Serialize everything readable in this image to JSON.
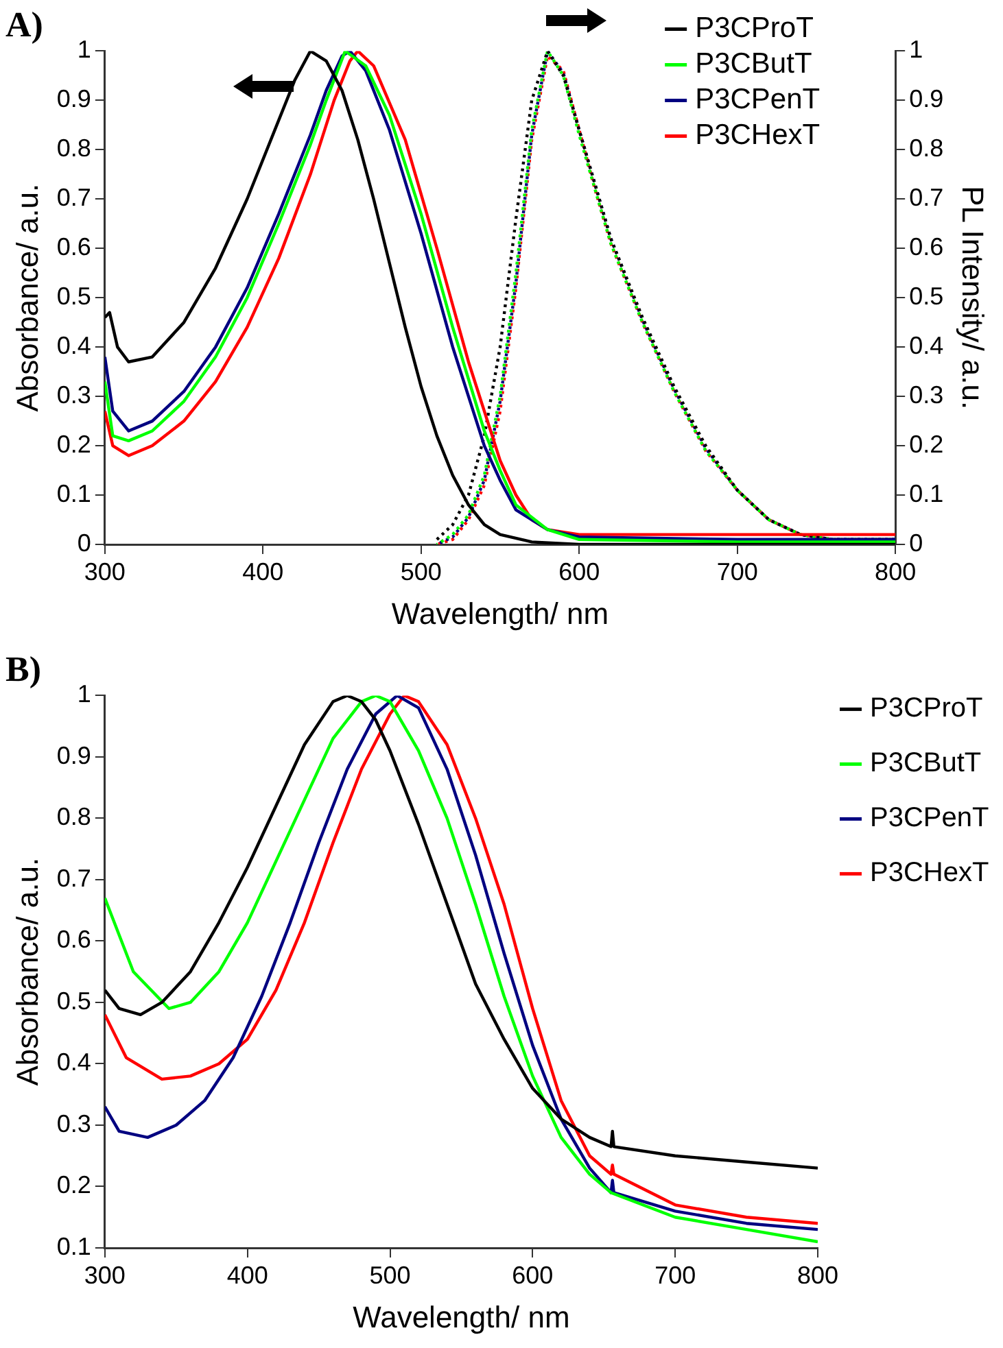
{
  "chart_data": [
    {
      "type": "line",
      "title": "A)",
      "xlabel": "Wavelength/ nm",
      "ylabel": "Absorbance/ a.u.",
      "y2label": "PL Intensity/ a.u.",
      "xlim": [
        300,
        800
      ],
      "xticks": [
        300,
        400,
        500,
        600,
        700,
        800
      ],
      "ylim": [
        0,
        1
      ],
      "yticks": [
        0,
        0.1,
        0.2,
        0.3,
        0.4,
        0.5,
        0.6,
        0.7,
        0.8,
        0.9,
        1
      ],
      "y2lim": [
        0,
        1
      ],
      "y2ticks": [
        0,
        0.1,
        0.2,
        0.3,
        0.4,
        0.5,
        0.6,
        0.7,
        0.8,
        0.9,
        1
      ],
      "grid": false,
      "legend": "top right",
      "marker": "none",
      "line_style": "solid",
      "series": [
        {
          "name": "P3CProT",
          "color": "#000000",
          "x": [
            300,
            303,
            308,
            315,
            330,
            350,
            370,
            390,
            410,
            420,
            430,
            440,
            450,
            460,
            470,
            480,
            490,
            500,
            510,
            520,
            530,
            540,
            550,
            570,
            600,
            700,
            800
          ],
          "values": [
            0.46,
            0.47,
            0.4,
            0.37,
            0.38,
            0.45,
            0.56,
            0.7,
            0.86,
            0.94,
            1,
            0.98,
            0.92,
            0.82,
            0.7,
            0.57,
            0.44,
            0.32,
            0.22,
            0.14,
            0.08,
            0.04,
            0.02,
            0.005,
            0,
            0,
            0
          ]
        },
        {
          "name": "P3CButT",
          "color": "#00ff00",
          "x": [
            300,
            305,
            315,
            330,
            350,
            370,
            390,
            410,
            430,
            440,
            452,
            465,
            480,
            500,
            520,
            540,
            550,
            560,
            580,
            600,
            700,
            800
          ],
          "values": [
            0.33,
            0.22,
            0.21,
            0.23,
            0.29,
            0.38,
            0.5,
            0.65,
            0.81,
            0.9,
            1,
            0.97,
            0.87,
            0.67,
            0.44,
            0.23,
            0.15,
            0.08,
            0.03,
            0.01,
            0.005,
            0.005
          ]
        },
        {
          "name": "P3CPenT",
          "color": "#000080",
          "x": [
            300,
            305,
            315,
            330,
            350,
            370,
            390,
            410,
            430,
            440,
            450,
            455,
            465,
            480,
            500,
            520,
            540,
            550,
            560,
            580,
            600,
            700,
            800
          ],
          "values": [
            0.38,
            0.27,
            0.23,
            0.25,
            0.31,
            0.4,
            0.52,
            0.67,
            0.83,
            0.92,
            0.99,
            1,
            0.96,
            0.84,
            0.63,
            0.4,
            0.2,
            0.13,
            0.07,
            0.03,
            0.015,
            0.01,
            0.01
          ]
        },
        {
          "name": "P3CHexT",
          "color": "#ff0000",
          "x": [
            300,
            305,
            315,
            330,
            350,
            370,
            390,
            410,
            430,
            445,
            455,
            460,
            470,
            490,
            510,
            530,
            550,
            560,
            570,
            580,
            600,
            700,
            800
          ],
          "values": [
            0.27,
            0.2,
            0.18,
            0.2,
            0.25,
            0.33,
            0.44,
            0.58,
            0.75,
            0.9,
            0.98,
            1,
            0.97,
            0.82,
            0.6,
            0.37,
            0.17,
            0.1,
            0.05,
            0.03,
            0.02,
            0.02,
            0.02
          ]
        },
        {
          "axis": "y2",
          "line_style": "dotted",
          "color": "#000000",
          "x": [
            510,
            520,
            530,
            540,
            550,
            560,
            570,
            580,
            590,
            600,
            610,
            620,
            640,
            660,
            680,
            700,
            720,
            740,
            760,
            780,
            800
          ],
          "values": [
            0.01,
            0.04,
            0.1,
            0.22,
            0.4,
            0.66,
            0.9,
            1,
            0.95,
            0.84,
            0.73,
            0.62,
            0.46,
            0.32,
            0.2,
            0.11,
            0.05,
            0.02,
            0.01,
            0.01,
            0.01
          ]
        },
        {
          "axis": "y2",
          "line_style": "dotted",
          "color": "#00ff00",
          "x": [
            510,
            520,
            530,
            540,
            550,
            560,
            570,
            580,
            590,
            600,
            610,
            620,
            640,
            660,
            680,
            700,
            720,
            740,
            760,
            780,
            800
          ],
          "values": [
            0,
            0.02,
            0.06,
            0.14,
            0.3,
            0.55,
            0.84,
            1,
            0.95,
            0.83,
            0.72,
            0.61,
            0.45,
            0.31,
            0.19,
            0.11,
            0.05,
            0.02,
            0.01,
            0.01,
            0.01
          ]
        },
        {
          "axis": "y2",
          "line_style": "dotted",
          "color": "#000080",
          "x": [
            510,
            520,
            530,
            540,
            550,
            560,
            570,
            580,
            590,
            600,
            610,
            620,
            640,
            660,
            680,
            700,
            720,
            740,
            760,
            780,
            800
          ],
          "values": [
            0,
            0.015,
            0.055,
            0.13,
            0.29,
            0.53,
            0.83,
            1,
            0.955,
            0.84,
            0.73,
            0.62,
            0.455,
            0.315,
            0.195,
            0.11,
            0.05,
            0.02,
            0.01,
            0.01,
            0.01
          ]
        },
        {
          "axis": "y2",
          "line_style": "dotted",
          "color": "#ff0000",
          "x": [
            510,
            520,
            530,
            540,
            550,
            560,
            570,
            580,
            590,
            600,
            610,
            620,
            640,
            660,
            680,
            700,
            720,
            740,
            760,
            780,
            800
          ],
          "values": [
            0,
            0.01,
            0.05,
            0.12,
            0.27,
            0.52,
            0.82,
            0.99,
            0.96,
            0.84,
            0.72,
            0.61,
            0.45,
            0.31,
            0.19,
            0.11,
            0.05,
            0.02,
            0.01,
            0.01,
            0.01
          ]
        }
      ]
    },
    {
      "type": "line",
      "title": "B)",
      "xlabel": "Wavelength/ nm",
      "ylabel": "Absorbance/ a.u.",
      "xlim": [
        300,
        800
      ],
      "xticks": [
        300,
        400,
        500,
        600,
        700,
        800
      ],
      "ylim": [
        0.1,
        1
      ],
      "yticks": [
        0.1,
        0.2,
        0.3,
        0.4,
        0.5,
        0.6,
        0.7,
        0.8,
        0.9,
        1
      ],
      "grid": false,
      "legend": "right",
      "marker": "none",
      "line_style": "solid",
      "series": [
        {
          "name": "P3CProT",
          "color": "#000000",
          "x": [
            300,
            310,
            325,
            340,
            360,
            380,
            400,
            420,
            440,
            460,
            470,
            480,
            490,
            500,
            520,
            540,
            560,
            580,
            600,
            620,
            640,
            655,
            656,
            657,
            700,
            750,
            800
          ],
          "values": [
            0.52,
            0.49,
            0.48,
            0.5,
            0.55,
            0.63,
            0.72,
            0.82,
            0.92,
            0.99,
            1,
            0.99,
            0.96,
            0.91,
            0.79,
            0.66,
            0.53,
            0.44,
            0.36,
            0.31,
            0.28,
            0.265,
            0.29,
            0.265,
            0.25,
            0.24,
            0.23
          ]
        },
        {
          "name": "P3CButT",
          "color": "#00ff00",
          "x": [
            300,
            320,
            345,
            360,
            380,
            400,
            420,
            440,
            460,
            480,
            490,
            500,
            520,
            540,
            560,
            580,
            600,
            620,
            640,
            655,
            700,
            750,
            800
          ],
          "values": [
            0.67,
            0.55,
            0.49,
            0.5,
            0.55,
            0.63,
            0.73,
            0.83,
            0.93,
            0.99,
            1,
            0.99,
            0.91,
            0.8,
            0.66,
            0.51,
            0.38,
            0.28,
            0.22,
            0.19,
            0.15,
            0.13,
            0.11
          ]
        },
        {
          "name": "P3CPenT",
          "color": "#000080",
          "x": [
            300,
            310,
            330,
            350,
            370,
            390,
            410,
            430,
            450,
            470,
            490,
            505,
            520,
            540,
            560,
            580,
            600,
            620,
            640,
            655,
            656,
            657,
            700,
            750,
            800
          ],
          "values": [
            0.33,
            0.29,
            0.28,
            0.3,
            0.34,
            0.41,
            0.51,
            0.63,
            0.76,
            0.88,
            0.97,
            1,
            0.98,
            0.88,
            0.74,
            0.58,
            0.43,
            0.31,
            0.23,
            0.19,
            0.21,
            0.19,
            0.16,
            0.14,
            0.13
          ]
        },
        {
          "name": "P3CHexT",
          "color": "#ff0000",
          "x": [
            300,
            315,
            340,
            360,
            380,
            400,
            420,
            440,
            460,
            480,
            500,
            510,
            520,
            540,
            560,
            580,
            600,
            620,
            640,
            655,
            656,
            657,
            700,
            750,
            800
          ],
          "values": [
            0.48,
            0.41,
            0.375,
            0.38,
            0.4,
            0.44,
            0.52,
            0.63,
            0.76,
            0.88,
            0.97,
            1,
            0.99,
            0.92,
            0.8,
            0.66,
            0.49,
            0.34,
            0.25,
            0.22,
            0.235,
            0.22,
            0.17,
            0.15,
            0.14
          ]
        }
      ]
    }
  ]
}
